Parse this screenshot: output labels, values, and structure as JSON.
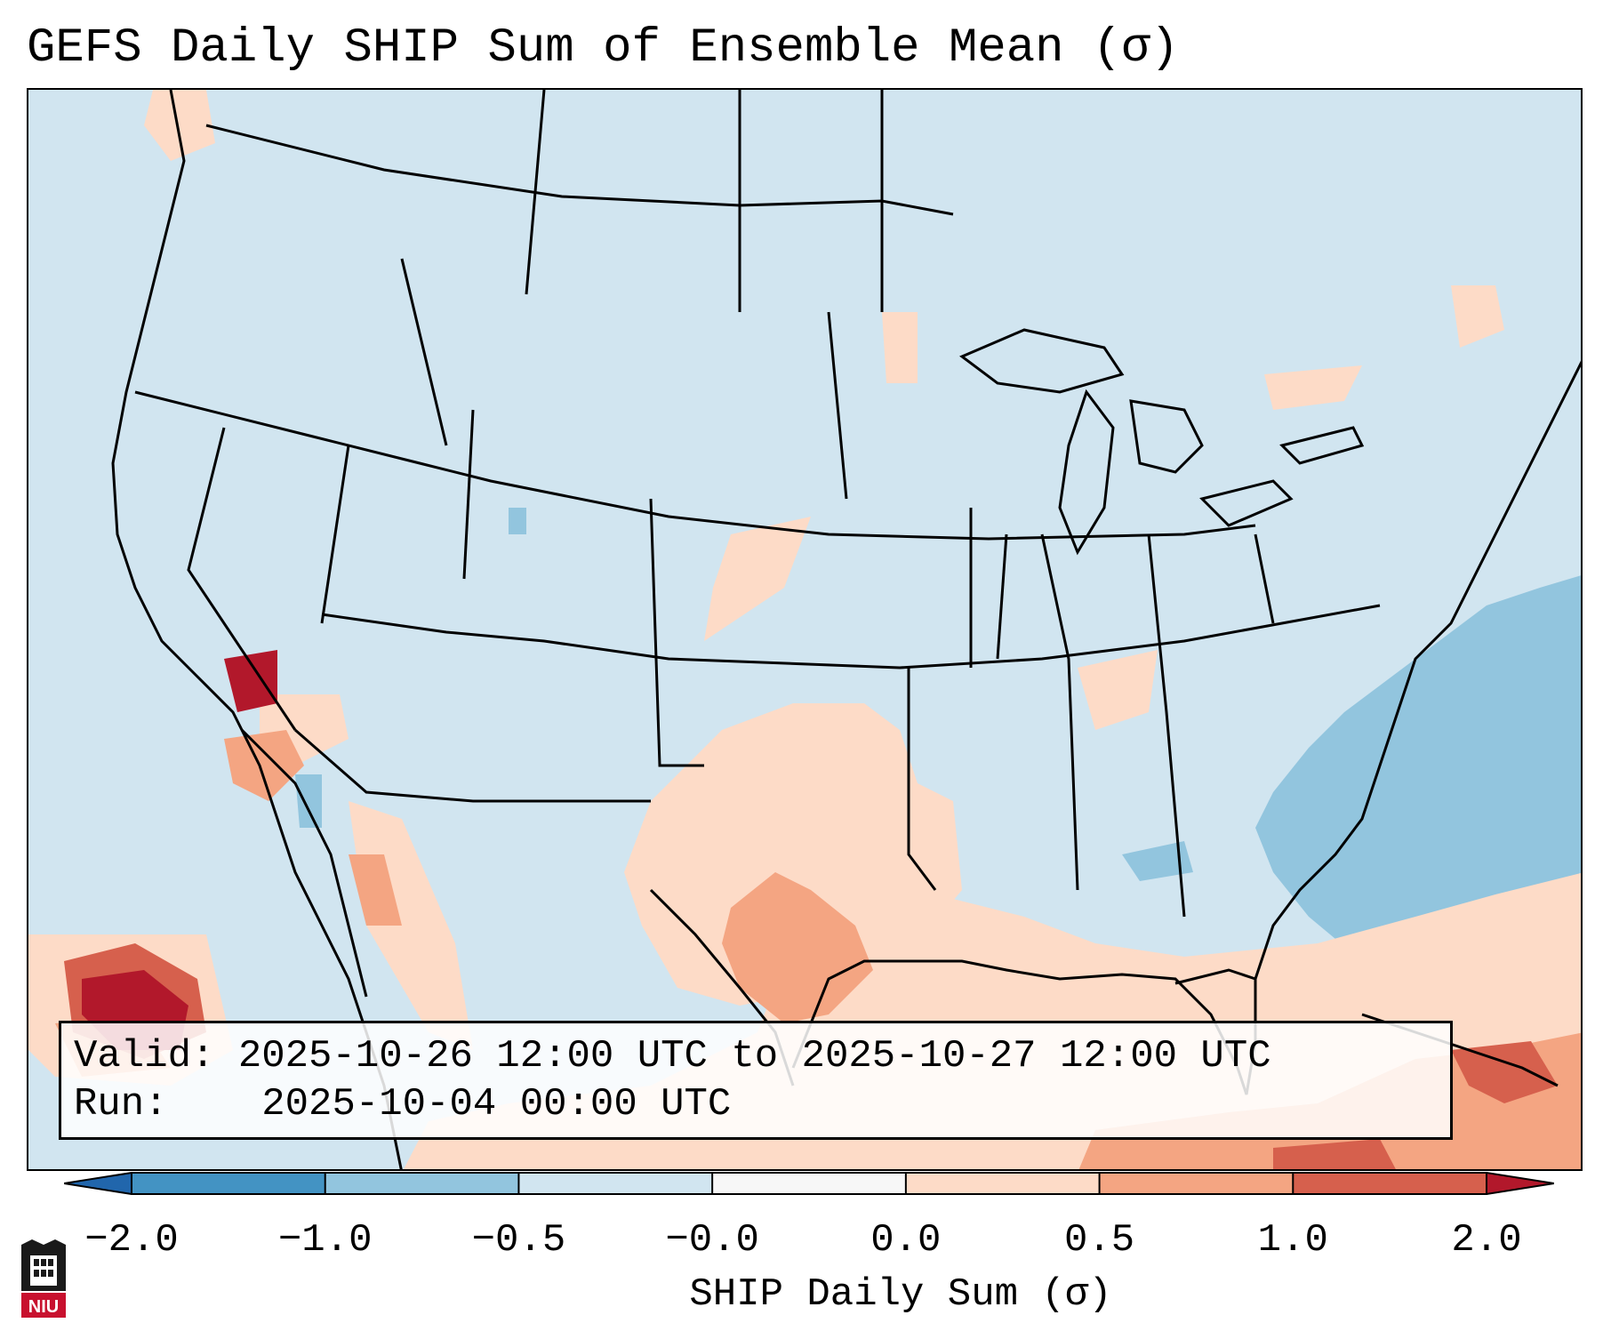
{
  "title": "GEFS Daily SHIP Sum of Ensemble Mean (σ)",
  "info": {
    "valid_label": "Valid:",
    "valid_value": "2025-10-26 12:00 UTC to 2025-10-27 12:00 UTC",
    "run_label": "Run:",
    "run_value": "2025-10-04 00:00 UTC"
  },
  "colorbar": {
    "label": "SHIP Daily Sum (σ)",
    "ticks": [
      "−2.0",
      "−1.0",
      "−0.5",
      "−0.0",
      "0.0",
      "0.5",
      "1.0",
      "2.0"
    ],
    "bins": [
      {
        "color": "#4393c3"
      },
      {
        "color": "#92c5de"
      },
      {
        "color": "#d1e5f0"
      },
      {
        "color": "#f7f7f7"
      },
      {
        "color": "#fddbc7"
      },
      {
        "color": "#f4a582"
      },
      {
        "color": "#d6604d"
      }
    ],
    "under_color": "#2166ac",
    "over_color": "#b2182b"
  },
  "logo": {
    "text": "NIU"
  }
}
